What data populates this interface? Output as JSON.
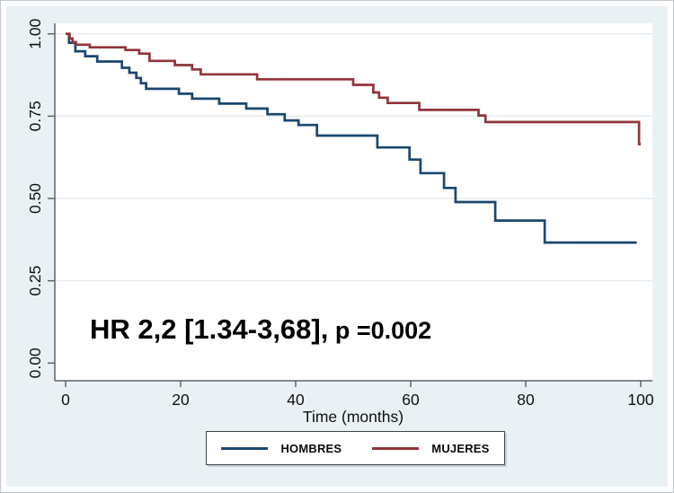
{
  "figure": {
    "outer_background": "#ffffff",
    "graph_region_color": "#eaf1f5",
    "plot_region_color": "#ffffff",
    "axis_color": "#5f6466",
    "grid_color": "#e2ebf2",
    "text_color": "#111111"
  },
  "annotation": {
    "main": "HR 2,2 [1.34-3,68],",
    "pvalue": " p =0.002"
  },
  "legend": {
    "items": [
      {
        "label": "HOMBRES",
        "color": "#1a476f"
      },
      {
        "label": "MUJERES",
        "color": "#90353b"
      }
    ]
  },
  "chart_data": {
    "type": "line",
    "subtype": "kaplan-meier-step",
    "title": "",
    "xlabel": "Time (months)",
    "ylabel": "",
    "xlim": [
      0,
      102
    ],
    "ylim": [
      0,
      1.0
    ],
    "grid": true,
    "legend_position": "bottom-center",
    "x_ticks": [
      0,
      20,
      40,
      60,
      80,
      100
    ],
    "y_tick_values": [
      0,
      0.25,
      0.5,
      0.75,
      1.0
    ],
    "y_tick_labels": [
      "0.00",
      "0.25",
      "0.50",
      "0.75",
      "1.00"
    ],
    "annotation_text": "HR 2,2 [1.34-3,68], p =0.002",
    "series": [
      {
        "name": "HOMBRES",
        "color": "#1a476f",
        "points": [
          [
            0,
            1.0
          ],
          [
            0.6,
            0.973
          ],
          [
            1.7,
            0.947
          ],
          [
            3.4,
            0.932
          ],
          [
            5.5,
            0.916
          ],
          [
            9.8,
            0.897
          ],
          [
            11.1,
            0.882
          ],
          [
            12.3,
            0.866
          ],
          [
            13.1,
            0.85
          ],
          [
            14.0,
            0.833
          ],
          [
            19.7,
            0.818
          ],
          [
            22.0,
            0.803
          ],
          [
            26.7,
            0.788
          ],
          [
            31.4,
            0.773
          ],
          [
            35.1,
            0.756
          ],
          [
            38.1,
            0.737
          ],
          [
            40.5,
            0.723
          ],
          [
            43.7,
            0.691
          ],
          [
            54.2,
            0.655
          ],
          [
            59.8,
            0.618
          ],
          [
            61.7,
            0.577
          ],
          [
            65.8,
            0.532
          ],
          [
            67.8,
            0.489
          ],
          [
            74.7,
            0.433
          ],
          [
            83.3,
            0.366
          ],
          [
            99.3,
            0.366
          ]
        ]
      },
      {
        "name": "MUJERES",
        "color": "#90353b",
        "points": [
          [
            0,
            1.0
          ],
          [
            0.7,
            0.986
          ],
          [
            1.2,
            0.975
          ],
          [
            1.8,
            0.967
          ],
          [
            4.2,
            0.959
          ],
          [
            10.4,
            0.951
          ],
          [
            12.8,
            0.94
          ],
          [
            14.6,
            0.918
          ],
          [
            19.0,
            0.905
          ],
          [
            22.0,
            0.892
          ],
          [
            23.5,
            0.877
          ],
          [
            33.3,
            0.862
          ],
          [
            50.0,
            0.845
          ],
          [
            53.5,
            0.822
          ],
          [
            54.5,
            0.806
          ],
          [
            56.0,
            0.79
          ],
          [
            61.5,
            0.769
          ],
          [
            71.8,
            0.752
          ],
          [
            73.0,
            0.732
          ],
          [
            99.7,
            0.665
          ],
          [
            100.0,
            0.665
          ]
        ]
      }
    ]
  }
}
